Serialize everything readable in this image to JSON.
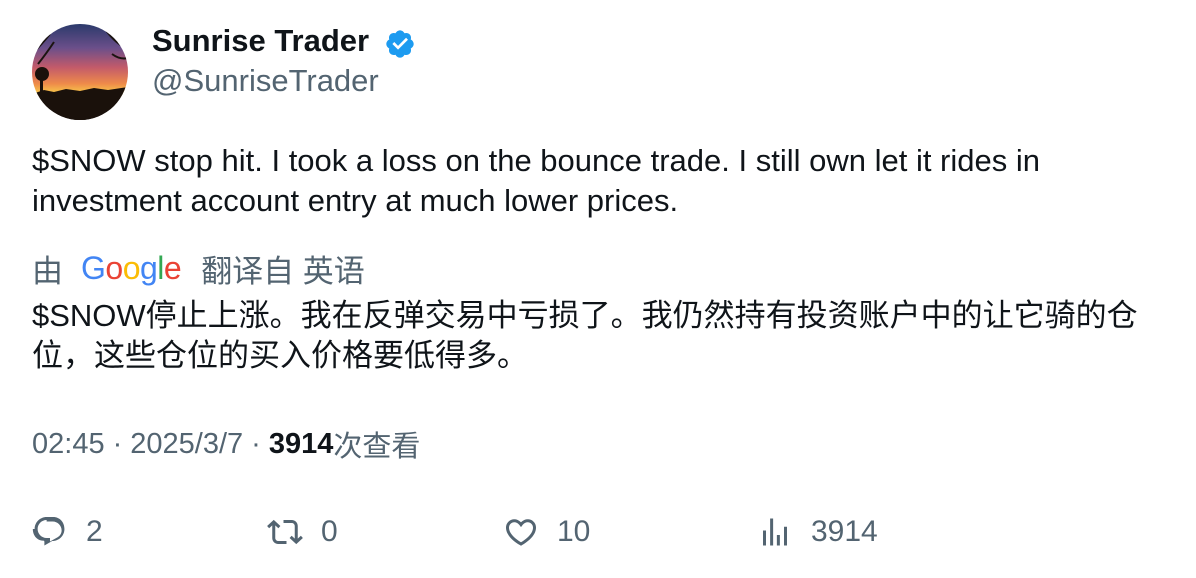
{
  "author": {
    "display_name": "Sunrise Trader",
    "handle": "@SunriseTrader",
    "verified": true,
    "avatar_icon": "sunset-landscape-avatar"
  },
  "tweet": {
    "text": "$SNOW stop hit. I took a loss on the bounce trade.  I still own let it rides in investment account entry at much lower prices."
  },
  "translation": {
    "by_label": "由",
    "provider": [
      "G",
      "o",
      "o",
      "g",
      "l",
      "e"
    ],
    "from_label": "翻译自 英语",
    "text": "$SNOW停止上涨。我在反弹交易中亏损了。我仍然持有投资账户中的让它骑的仓位，这些仓位的买入价格要低得多。"
  },
  "meta": {
    "time": "02:45",
    "separator": "·",
    "date": "2025/3/7",
    "views": "3914",
    "views_label": "次查看"
  },
  "actions": {
    "replies": "2",
    "retweets": "0",
    "likes": "10",
    "views": "3914"
  },
  "colors": {
    "text_primary": "#0f1419",
    "text_secondary": "#536471",
    "verified_blue": "#1d9bf0"
  }
}
